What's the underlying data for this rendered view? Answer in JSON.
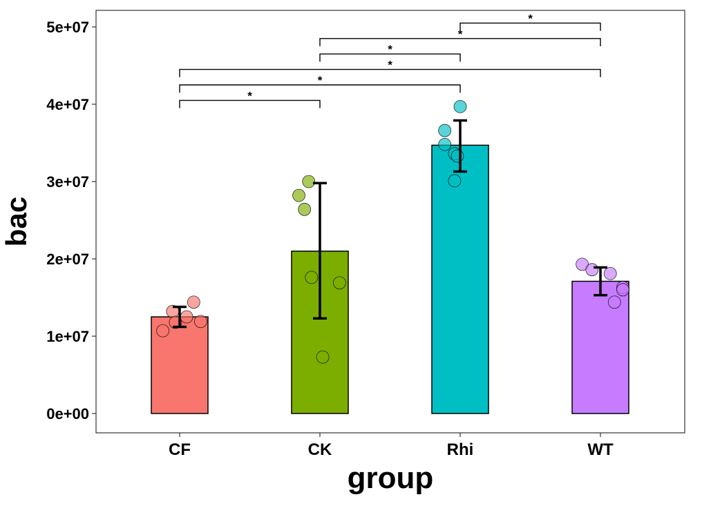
{
  "chart_data": {
    "type": "bar",
    "title": "",
    "xlabel": "group",
    "ylabel": "bac",
    "ylim": [
      -2000000,
      52500000
    ],
    "yticks": [
      0,
      10000000,
      20000000,
      30000000,
      40000000,
      50000000
    ],
    "ytick_labels": [
      "0e+00",
      "1e+07",
      "2e+07",
      "3e+07",
      "4e+07",
      "5e+07"
    ],
    "categories": [
      "CF",
      "CK",
      "Rhi",
      "WT"
    ],
    "values": [
      12500000,
      21000000,
      34700000,
      17100000
    ],
    "error_lower": [
      11200000,
      12300000,
      31300000,
      15300000
    ],
    "error_upper": [
      13800000,
      29800000,
      37900000,
      18900000
    ],
    "colors": [
      "#F8766D",
      "#7CAE00",
      "#00BFC4",
      "#C77CFF"
    ],
    "points": [
      [
        {
          "dx": 0.1,
          "y": 14400000
        },
        {
          "dx": -0.05,
          "y": 13200000
        },
        {
          "dx": 0.05,
          "y": 12500000
        },
        {
          "dx": 0.15,
          "y": 11900000
        },
        {
          "dx": -0.03,
          "y": 11800000
        },
        {
          "dx": -0.12,
          "y": 10700000
        }
      ],
      [
        {
          "dx": -0.08,
          "y": 30000000
        },
        {
          "dx": -0.15,
          "y": 28200000
        },
        {
          "dx": -0.11,
          "y": 26400000
        },
        {
          "dx": -0.06,
          "y": 17600000
        },
        {
          "dx": 0.14,
          "y": 16900000
        },
        {
          "dx": 0.02,
          "y": 7300000
        }
      ],
      [
        {
          "dx": 0.0,
          "y": 39700000
        },
        {
          "dx": -0.11,
          "y": 36600000
        },
        {
          "dx": -0.11,
          "y": 34800000
        },
        {
          "dx": -0.04,
          "y": 33600000
        },
        {
          "dx": -0.02,
          "y": 33300000
        },
        {
          "dx": -0.04,
          "y": 30100000
        }
      ],
      [
        {
          "dx": -0.13,
          "y": 19300000
        },
        {
          "dx": -0.06,
          "y": 18600000
        },
        {
          "dx": 0.07,
          "y": 18100000
        },
        {
          "dx": 0.16,
          "y": 16300000
        },
        {
          "dx": 0.16,
          "y": 16000000
        },
        {
          "dx": 0.1,
          "y": 14400000
        }
      ]
    ],
    "significance": [
      {
        "from": "CF",
        "to": "CK",
        "label": "*",
        "y": 39500000,
        "tip": 1000000
      },
      {
        "from": "CF",
        "to": "Rhi",
        "label": "*",
        "y": 41500000,
        "tip": 1000000
      },
      {
        "from": "CF",
        "to": "WT",
        "label": "*",
        "y": 43500000,
        "tip": 1000000
      },
      {
        "from": "CK",
        "to": "Rhi",
        "label": "*",
        "y": 45500000,
        "tip": 1000000
      },
      {
        "from": "CK",
        "to": "WT",
        "label": "*",
        "y": 47500000,
        "tip": 1000000
      },
      {
        "from": "Rhi",
        "to": "WT",
        "label": "*",
        "y": 49500000,
        "tip": 1000000
      }
    ],
    "grid": false,
    "legend": "none"
  }
}
